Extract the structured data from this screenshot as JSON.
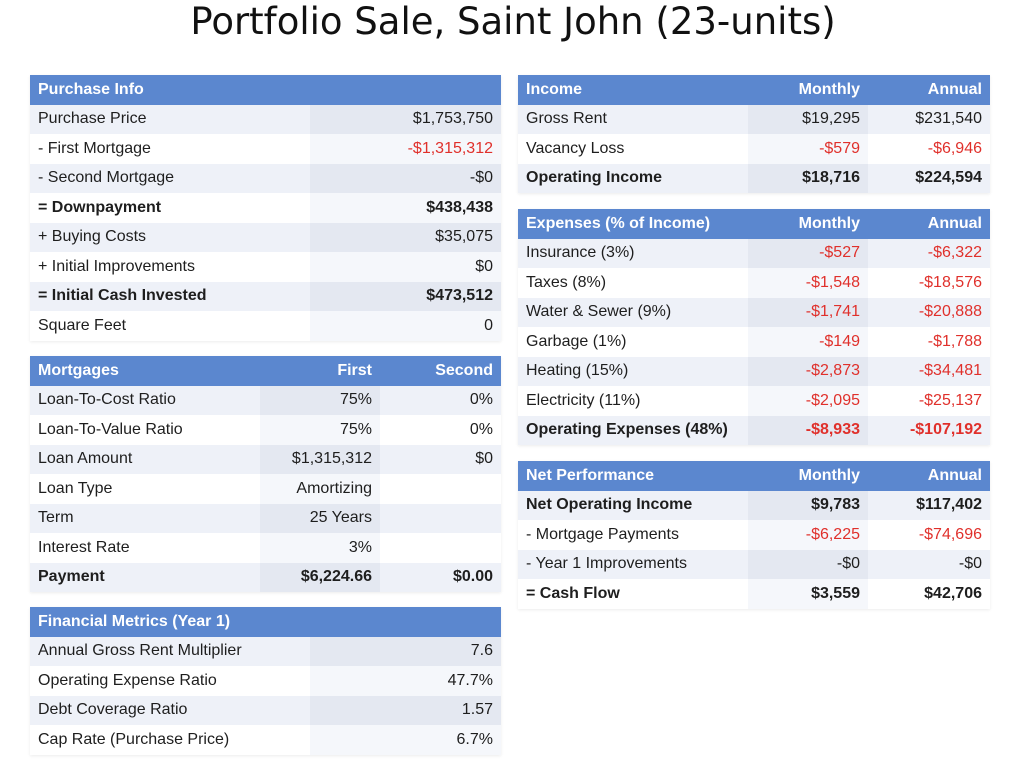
{
  "title": "Portfolio Sale, Saint John (23-units)",
  "colors": {
    "header_bg": "#5b87cf",
    "negative": "#e0302b"
  },
  "purchase": {
    "header": "Purchase Info",
    "rows": [
      {
        "label": "Purchase Price",
        "value": "$1,753,750"
      },
      {
        "label": "- First Mortgage",
        "value": "-$1,315,312"
      },
      {
        "label": "- Second Mortgage",
        "value": "-$0"
      },
      {
        "label": "= Downpayment",
        "value": "$438,438"
      },
      {
        "label": "+ Buying Costs",
        "value": "$35,075"
      },
      {
        "label": "+ Initial Improvements",
        "value": "$0"
      },
      {
        "label": "= Initial Cash Invested",
        "value": "$473,512"
      },
      {
        "label": "Square Feet",
        "value": "0"
      }
    ]
  },
  "mortgages": {
    "header": "Mortgages",
    "col1": "First",
    "col2": "Second",
    "rows": [
      {
        "label": "Loan-To-Cost Ratio",
        "first": "75%",
        "second": "0%"
      },
      {
        "label": "Loan-To-Value Ratio",
        "first": "75%",
        "second": "0%"
      },
      {
        "label": "Loan Amount",
        "first": "$1,315,312",
        "second": "$0"
      },
      {
        "label": "Loan Type",
        "first": "Amortizing",
        "second": ""
      },
      {
        "label": "Term",
        "first": "25 Years",
        "second": ""
      },
      {
        "label": "Interest Rate",
        "first": "3%",
        "second": ""
      },
      {
        "label": "Payment",
        "first": "$6,224.66",
        "second": "$0.00"
      }
    ]
  },
  "metrics": {
    "header": "Financial Metrics (Year 1)",
    "rows": [
      {
        "label": "Annual Gross Rent Multiplier",
        "value": "7.6"
      },
      {
        "label": "Operating Expense Ratio",
        "value": "47.7%"
      },
      {
        "label": "Debt Coverage Ratio",
        "value": "1.57"
      },
      {
        "label": "Cap Rate (Purchase Price)",
        "value": "6.7%"
      }
    ]
  },
  "income": {
    "header": "Income",
    "col1": "Monthly",
    "col2": "Annual",
    "rows": [
      {
        "label": "Gross Rent",
        "monthly": "$19,295",
        "annual": "$231,540"
      },
      {
        "label": "Vacancy Loss",
        "monthly": "-$579",
        "annual": "-$6,946"
      },
      {
        "label": "Operating Income",
        "monthly": "$18,716",
        "annual": "$224,594"
      }
    ]
  },
  "expenses": {
    "header": "Expenses (% of Income)",
    "col1": "Monthly",
    "col2": "Annual",
    "rows": [
      {
        "label": "Insurance (3%)",
        "monthly": "-$527",
        "annual": "-$6,322"
      },
      {
        "label": "Taxes (8%)",
        "monthly": "-$1,548",
        "annual": "-$18,576"
      },
      {
        "label": "Water & Sewer (9%)",
        "monthly": "-$1,741",
        "annual": "-$20,888"
      },
      {
        "label": "Garbage (1%)",
        "monthly": "-$149",
        "annual": "-$1,788"
      },
      {
        "label": "Heating (15%)",
        "monthly": "-$2,873",
        "annual": "-$34,481"
      },
      {
        "label": "Electricity (11%)",
        "monthly": "-$2,095",
        "annual": "-$25,137"
      },
      {
        "label": "Operating Expenses (48%)",
        "monthly": "-$8,933",
        "annual": "-$107,192"
      }
    ]
  },
  "net": {
    "header": "Net Performance",
    "col1": "Monthly",
    "col2": "Annual",
    "rows": [
      {
        "label": "Net Operating Income",
        "monthly": "$9,783",
        "annual": "$117,402"
      },
      {
        "label": "- Mortgage Payments",
        "monthly": "-$6,225",
        "annual": "-$74,696"
      },
      {
        "label": "- Year 1 Improvements",
        "monthly": "-$0",
        "annual": "-$0"
      },
      {
        "label": "= Cash Flow",
        "monthly": "$3,559",
        "annual": "$42,706"
      }
    ]
  }
}
